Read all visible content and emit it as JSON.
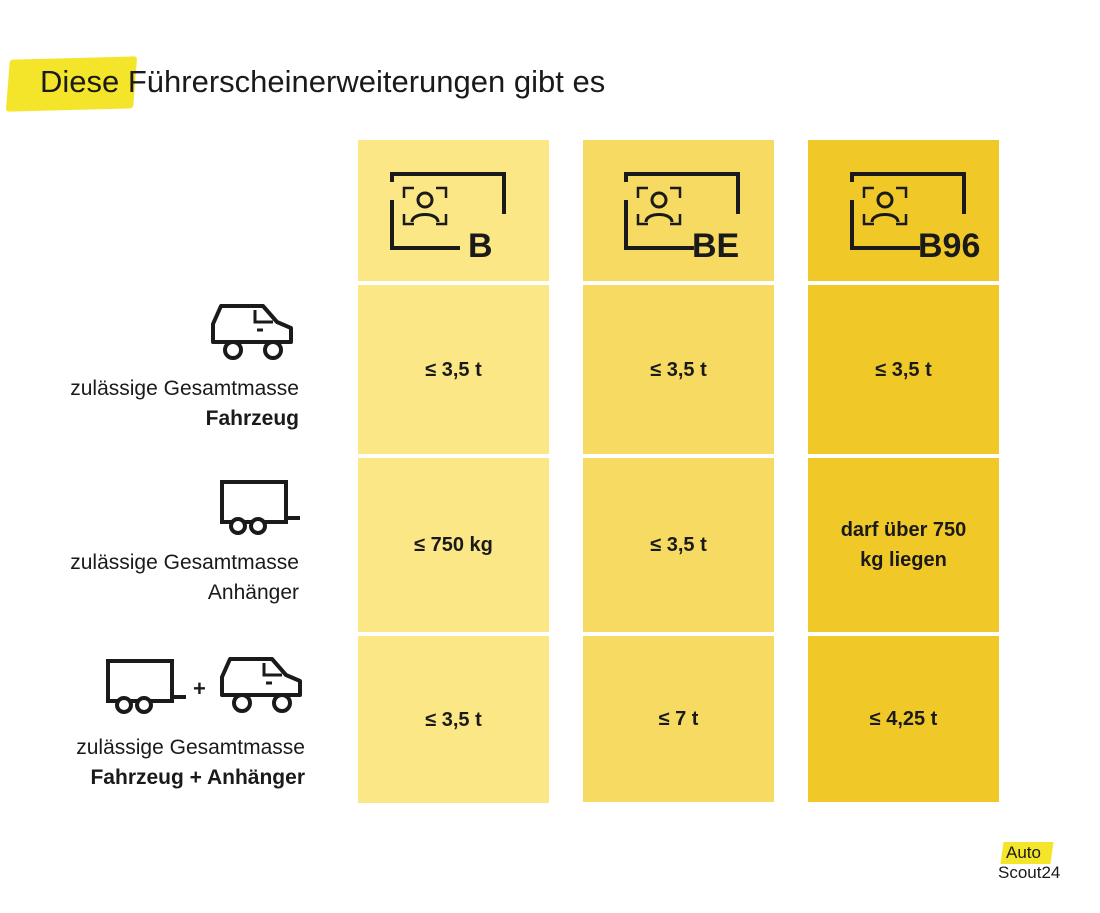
{
  "title": "Diese Führerscheinerweiterungen gibt es",
  "columns": [
    {
      "label": "B",
      "color": "#fbe785"
    },
    {
      "label": "BE",
      "color": "#f6da61"
    },
    {
      "label": "B96",
      "color": "#f0c928"
    }
  ],
  "rows": [
    {
      "icon": "car-icon",
      "label_line1": "zulässige Gesamtmasse",
      "label_line2": "Fahrzeug",
      "values": [
        "≤ 3,5 t",
        "≤ 3,5 t",
        "≤ 3,5 t"
      ]
    },
    {
      "icon": "trailer-icon",
      "label_line1": "zulässige Gesamtmasse",
      "label_line2": "Anhänger",
      "values": [
        "≤ 750 kg",
        "≤ 3,5 t",
        "darf über 750 kg liegen"
      ]
    },
    {
      "icon": "trailer-plus-car-icon",
      "plus": "+",
      "label_line1": "zulässige Gesamtmasse",
      "label_line2": "Fahrzeug + Anhänger",
      "values": [
        "≤ 3,5 t",
        "≤ 7 t",
        "≤ 4,25 t"
      ]
    }
  ],
  "logo": {
    "line1": "Auto",
    "line2": "Scout24",
    "accent": "#f5e52a"
  }
}
